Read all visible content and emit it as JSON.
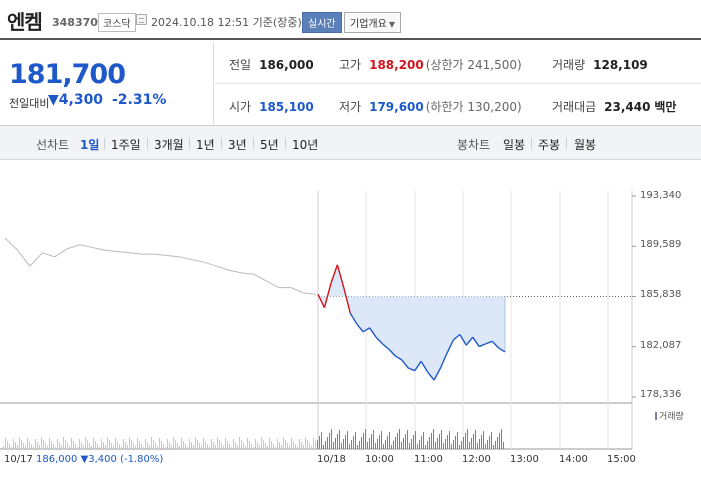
{
  "header": {
    "name": "엔켐",
    "code": "348370",
    "market": "코스닥",
    "timestamp": "2024.10.18 12:51  기준(장중)",
    "realtime": "실시간",
    "company_info": "기업개요"
  },
  "price": {
    "current": "181,700",
    "change_label": "전일대비",
    "change": "▼4,300",
    "change_pct": "-2.31%"
  },
  "stats": {
    "prev_close": {
      "label": "전일",
      "value": "186,000"
    },
    "high": {
      "label": "고가",
      "value": "188,200",
      "sub": "(상한가 241,500)"
    },
    "volume": {
      "label": "거래량",
      "value": "128,109"
    },
    "open": {
      "label": "시가",
      "value": "185,100"
    },
    "low": {
      "label": "저가",
      "value": "179,600",
      "sub": "(하한가 130,200)"
    },
    "amount": {
      "label": "거래대금",
      "value": "23,440",
      "unit": "백만"
    }
  },
  "period_bar": {
    "line_label": "선차트",
    "line_periods": [
      "1일",
      "1주일",
      "3개월",
      "1년",
      "3년",
      "5년",
      "10년"
    ],
    "candle_label": "봉차트",
    "candle_periods": [
      "일봉",
      "주봉",
      "월봉"
    ]
  },
  "chart_data": {
    "type": "line",
    "y_ticks": [
      "193,340",
      "189,589",
      "185,838",
      "182,087",
      "178,336"
    ],
    "ylim": [
      178336,
      193340
    ],
    "reference_line": 185838,
    "x_labels": [
      "10/18",
      "10:00",
      "11:00",
      "12:00",
      "13:00",
      "14:00",
      "15:00"
    ],
    "prev_day_label": "10/17",
    "prev_day_info": {
      "price": "186,000",
      "change": "▼3,400",
      "pct": "(-1.80%)"
    },
    "volume_legend": "거래량",
    "series": [
      {
        "values": [
          190200,
          189300,
          188100,
          189100,
          188800,
          189400,
          189700,
          189500,
          189300,
          189200,
          189100,
          189000,
          189000,
          188900,
          188800,
          188600,
          188400,
          188100,
          187800,
          187600,
          187500,
          187000,
          186500,
          186500,
          186100,
          186000
        ]
      },
      {
        "values": [
          186000,
          185000,
          186800,
          188200,
          186500,
          184600,
          183800,
          183200,
          183500,
          182800,
          182300,
          181900,
          181400,
          181100,
          180500,
          180300,
          181000,
          180200,
          179600,
          180500,
          181600,
          182600,
          183000,
          182200,
          182800,
          182100,
          182300,
          182500,
          182000,
          181700
        ]
      }
    ],
    "colors": {
      "up": "#d2141e",
      "down": "#1e58c9",
      "fill": "#dce8f8",
      "prev": "#bbbbbb",
      "volume": "#8a72b8"
    }
  }
}
